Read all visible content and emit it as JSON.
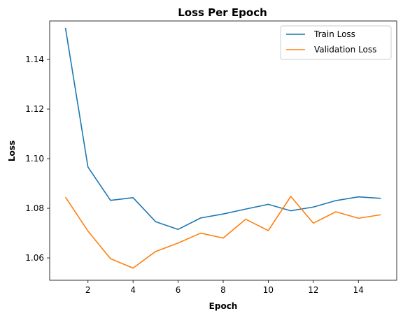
{
  "chart_data": {
    "type": "line",
    "title": "Loss Per Epoch",
    "xlabel": "Epoch",
    "ylabel": "Loss",
    "xlim": [
      0.3,
      15.7
    ],
    "ylim": [
      1.051,
      1.1555
    ],
    "xticks": [
      2,
      4,
      6,
      8,
      10,
      12,
      14
    ],
    "yticks": [
      1.06,
      1.08,
      1.1,
      1.12,
      1.14
    ],
    "ytick_labels": [
      "1.06",
      "1.08",
      "1.10",
      "1.12",
      "1.14"
    ],
    "grid": false,
    "legend_position": "top-right",
    "x": [
      1,
      2,
      3,
      4,
      5,
      6,
      7,
      8,
      9,
      10,
      11,
      12,
      13,
      14,
      15
    ],
    "series": [
      {
        "name": "Train Loss",
        "color": "#1f77b4",
        "values": [
          1.1527,
          1.0966,
          1.0832,
          1.0843,
          1.0746,
          1.0715,
          1.0761,
          1.0777,
          1.0797,
          1.0816,
          1.079,
          1.0805,
          1.0831,
          1.0846,
          1.084
        ]
      },
      {
        "name": "Validation Loss",
        "color": "#ff7f0e",
        "values": [
          1.0845,
          1.0708,
          1.0597,
          1.0559,
          1.0626,
          1.066,
          1.07,
          1.068,
          1.0756,
          1.071,
          1.0848,
          1.074,
          1.0786,
          1.076,
          1.0774
        ]
      }
    ]
  }
}
